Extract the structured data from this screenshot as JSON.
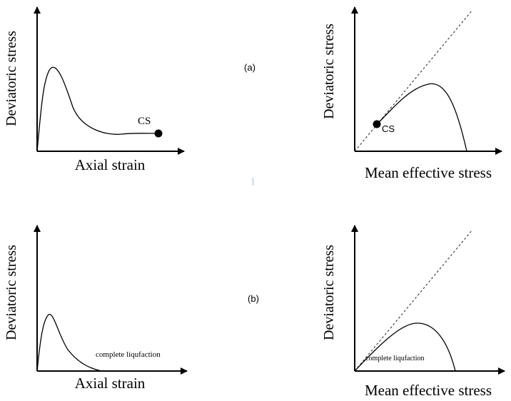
{
  "panel_labels": {
    "a": "(a)",
    "b": "(b)"
  },
  "panels": {
    "a_left": {
      "ylabel": "Deviatoric stress",
      "xlabel": "Axial strain",
      "annotation": "CS"
    },
    "a_right": {
      "ylabel": "Deviatoric stress",
      "xlabel": "Mean effective stress",
      "annotation": "CS"
    },
    "b_left": {
      "ylabel": "Deviatoric stress",
      "xlabel": "Axial strain",
      "annotation": "complete liqufaction"
    },
    "b_right": {
      "ylabel": "Deviatoric stress",
      "xlabel": "Mean effective stress",
      "annotation": "complete liqufaction"
    }
  }
}
